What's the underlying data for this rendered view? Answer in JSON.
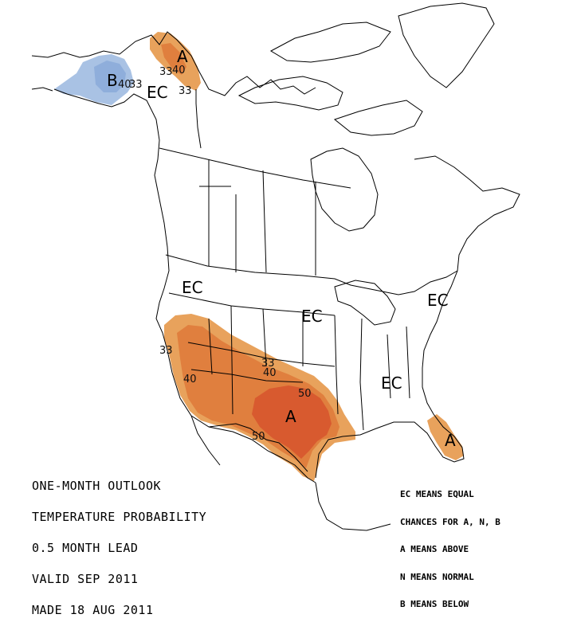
{
  "map": {
    "colors": {
      "above_33": "#e8a25c",
      "above_40": "#e07f3e",
      "above_50": "#d85a2f",
      "below_33": "#a9c2e4",
      "below_40": "#8faedb",
      "land_outline": "#000000",
      "background": "#ffffff"
    },
    "region_labels": {
      "alaska_b": "B",
      "yukon_a": "A",
      "yukon_ec": "EC",
      "west_ec": "EC",
      "central_ec": "EC",
      "northeast_ec": "EC",
      "southeast_ec": "EC",
      "southwest_a": "A",
      "florida_a": "A"
    },
    "contour_labels": {
      "alaska_40": "40",
      "alaska_33": "33",
      "yukon_33_left": "33",
      "yukon_40": "40",
      "yukon_33_right": "33",
      "sw_33_west": "33",
      "sw_40_west": "40",
      "sw_33_east": "33",
      "sw_40_east": "40",
      "sw_50_east": "50",
      "sw_50_south": "50"
    }
  },
  "info_left": {
    "line1": "ONE-MONTH OUTLOOK",
    "line2": "TEMPERATURE PROBABILITY",
    "line3": "0.5 MONTH LEAD",
    "line4": "VALID SEP 2011",
    "line5": "MADE 18 AUG 2011"
  },
  "legend": {
    "line1": "EC MEANS EQUAL",
    "line2": "CHANCES FOR A, N, B",
    "line3": "A MEANS ABOVE",
    "line4": "N MEANS NORMAL",
    "line5": "B MEANS BELOW"
  }
}
